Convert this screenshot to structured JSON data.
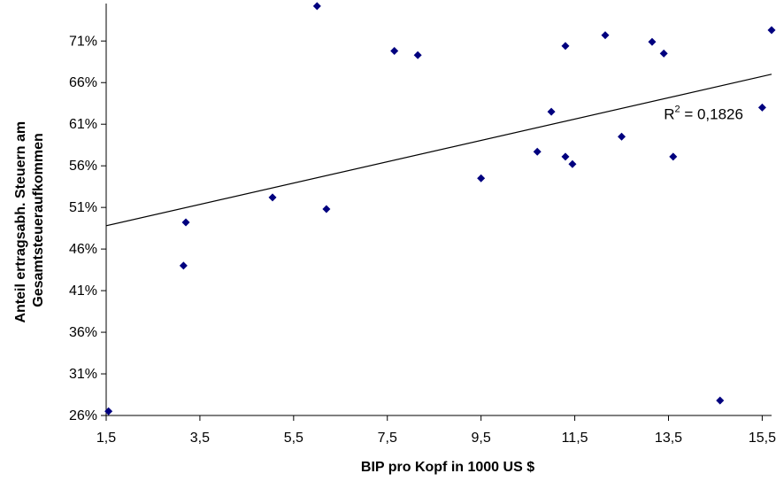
{
  "chart_data": {
    "type": "scatter",
    "title": "",
    "xlabel": "BIP pro Kopf in 1000 US $",
    "ylabel_lines": [
      "Anteil ertragsabh. Steuern am",
      "Gesamtsteueraufkommen"
    ],
    "xlim": [
      1.5,
      15.7
    ],
    "ylim": [
      26,
      75.5
    ],
    "x_ticks": [
      1.5,
      3.5,
      5.5,
      7.5,
      9.5,
      11.5,
      13.5,
      15.5
    ],
    "x_tick_labels": [
      "1,5",
      "3,5",
      "5,5",
      "7,5",
      "9,5",
      "11,5",
      "13,5",
      "15,5"
    ],
    "y_ticks": [
      26,
      31,
      36,
      41,
      46,
      51,
      56,
      61,
      66,
      71
    ],
    "y_tick_labels": [
      "26%",
      "31%",
      "36%",
      "41%",
      "46%",
      "51%",
      "56%",
      "61%",
      "66%",
      "71%"
    ],
    "grid": false,
    "legend": "none",
    "points": [
      {
        "x": 1.55,
        "y": 26.5
      },
      {
        "x": 3.15,
        "y": 44.0
      },
      {
        "x": 3.2,
        "y": 49.2
      },
      {
        "x": 5.05,
        "y": 52.2
      },
      {
        "x": 6.0,
        "y": 75.2
      },
      {
        "x": 6.2,
        "y": 50.8
      },
      {
        "x": 7.65,
        "y": 69.8
      },
      {
        "x": 8.15,
        "y": 69.3
      },
      {
        "x": 9.5,
        "y": 54.5
      },
      {
        "x": 10.7,
        "y": 57.7
      },
      {
        "x": 11.0,
        "y": 62.5
      },
      {
        "x": 11.3,
        "y": 70.4
      },
      {
        "x": 11.3,
        "y": 57.1
      },
      {
        "x": 11.45,
        "y": 56.2
      },
      {
        "x": 12.15,
        "y": 71.7
      },
      {
        "x": 12.5,
        "y": 59.5
      },
      {
        "x": 13.15,
        "y": 70.9
      },
      {
        "x": 13.4,
        "y": 69.5
      },
      {
        "x": 13.6,
        "y": 57.1
      },
      {
        "x": 14.6,
        "y": 27.8
      },
      {
        "x": 15.5,
        "y": 63.0
      },
      {
        "x": 15.7,
        "y": 72.3
      }
    ],
    "trendline": {
      "x": [
        1.5,
        15.7
      ],
      "y": [
        48.8,
        67.0
      ]
    },
    "annotation": {
      "r_text": "R",
      "sup_text": "2",
      "value_text": " = 0,1826",
      "x": 13.4,
      "y": 61.6
    },
    "colors": {
      "marker": "#00007F",
      "line": "#000000",
      "axis": "#000000"
    }
  }
}
